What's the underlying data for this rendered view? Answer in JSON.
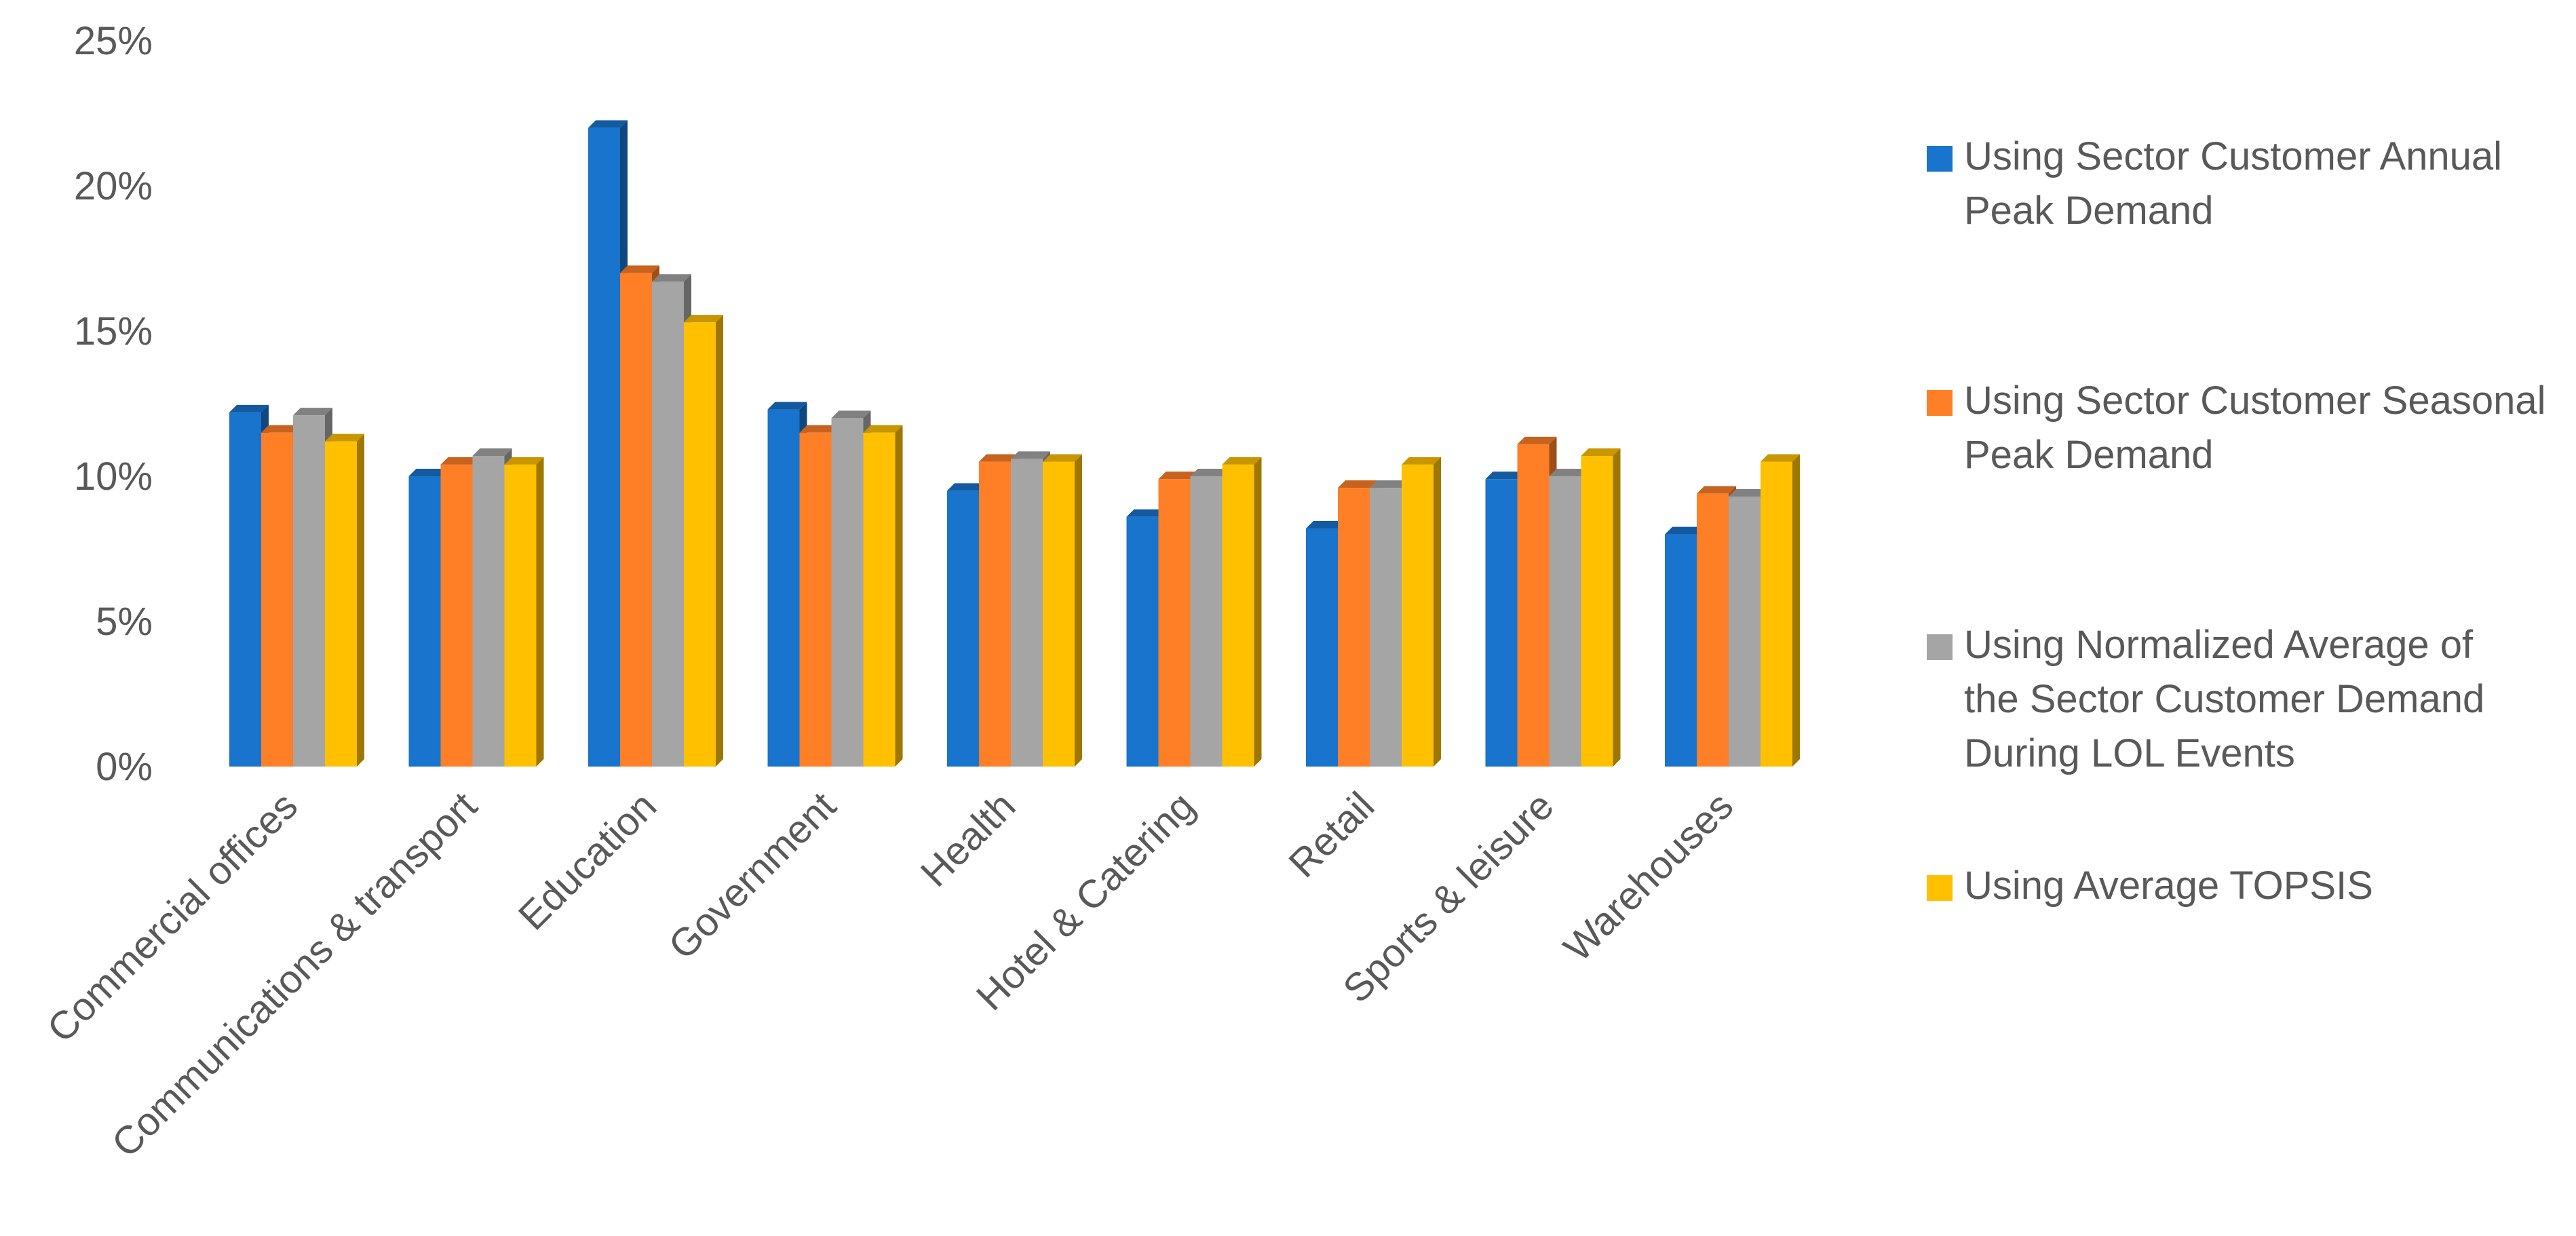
{
  "chart_data": {
    "type": "bar",
    "title": "",
    "xlabel": "",
    "ylabel": "",
    "ylim": [
      0,
      25
    ],
    "yticks": [
      0,
      5,
      10,
      15,
      20,
      25
    ],
    "ytick_labels": [
      "0%",
      "5%",
      "10%",
      "15%",
      "20%",
      "25%"
    ],
    "grid": false,
    "legend_position": "right",
    "style": "3d-clustered-column",
    "categories": [
      "Commercial offices",
      "Communications & transport",
      "Education",
      "Government",
      "Health",
      "Hotel & Catering",
      "Retail",
      "Sports & leisure",
      "Warehouses"
    ],
    "series": [
      {
        "name": "Using Sector Customer Annual Peak Demand",
        "name_lines": [
          "Using Sector Customer Annual",
          "Peak Demand"
        ],
        "color": "#1874CD",
        "values": [
          12.2,
          10.0,
          22.0,
          12.3,
          9.5,
          8.6,
          8.2,
          9.9,
          8.0
        ]
      },
      {
        "name": "Using Sector Customer Seasonal Peak Demand",
        "name_lines": [
          "Using Sector Customer Seasonal",
          "Peak Demand"
        ],
        "color": "#FF7F27",
        "values": [
          11.5,
          10.4,
          17.0,
          11.5,
          10.5,
          9.9,
          9.6,
          11.1,
          9.4
        ]
      },
      {
        "name": "Using Normalized Average of the Sector Customer Demand During LOL Events",
        "name_lines": [
          "Using Normalized Average of",
          "the Sector Customer Demand",
          "During LOL Events"
        ],
        "color": "#A5A5A5",
        "values": [
          12.1,
          10.7,
          16.7,
          12.0,
          10.6,
          10.0,
          9.6,
          10.0,
          9.3
        ]
      },
      {
        "name": "Using Average TOPSIS",
        "name_lines": [
          "Using Average TOPSIS"
        ],
        "color": "#FFC000",
        "values": [
          11.2,
          10.4,
          15.3,
          11.5,
          10.5,
          10.4,
          10.4,
          10.7,
          10.5
        ]
      }
    ]
  }
}
